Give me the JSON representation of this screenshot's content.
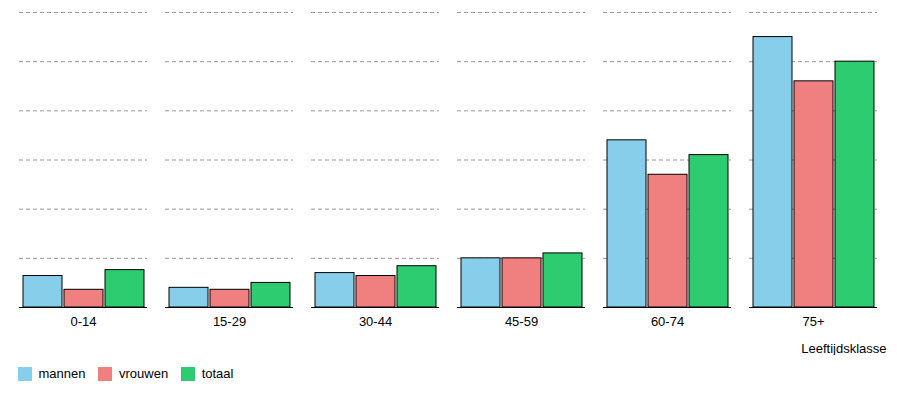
{
  "chart_data": {
    "type": "bar",
    "xlabel": "Leeftijdsklasse",
    "categories": [
      "0-14",
      "15-29",
      "30-44",
      "45-59",
      "60-74",
      "75+"
    ],
    "series": [
      {
        "name": "mannen",
        "color": "#87CEEB",
        "values": [
          3.2,
          2.0,
          3.5,
          5.0,
          17.0,
          27.5
        ]
      },
      {
        "name": "vrouwen",
        "color": "#F08080",
        "values": [
          1.8,
          1.8,
          3.2,
          5.0,
          13.5,
          23.0
        ]
      },
      {
        "name": "totaal",
        "color": "#2ECC71",
        "values": [
          3.8,
          2.5,
          4.2,
          5.5,
          15.5,
          25.0
        ]
      }
    ],
    "ylim": [
      0,
      30
    ],
    "yticks": [
      5,
      10,
      15,
      20,
      25,
      30
    ],
    "grid": true,
    "legend": "lower left",
    "tick_labels": "x"
  }
}
